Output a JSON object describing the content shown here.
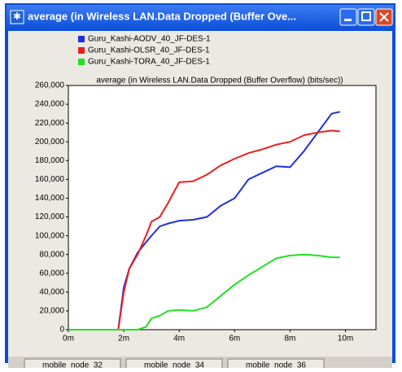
{
  "window_title": "average (in Wireless LAN.Data Dropped (Buffer Ove...",
  "bottom_tabs": [
    "mobile_node_32",
    "mobile_node_34",
    "mobile_node_36"
  ],
  "chart_data": {
    "type": "line",
    "title": "average (in Wireless LAN.Data Dropped (Buffer Overflow) (bits/sec))",
    "x": [
      0,
      1.8,
      2.0,
      2.2,
      2.5,
      2.8,
      3.0,
      3.3,
      3.6,
      4.0,
      4.5,
      5.0,
      5.5,
      6.0,
      6.5,
      7.0,
      7.5,
      8.0,
      8.5,
      9.0,
      9.5,
      9.8
    ],
    "series": [
      {
        "name": "Guru_Kashi-AODV_40_JF-DES-1",
        "color": "#1f2fe0",
        "values": [
          0,
          0,
          45000,
          65000,
          82000,
          93000,
          100000,
          110000,
          113000,
          116000,
          117000,
          120000,
          132000,
          140000,
          160000,
          167000,
          174000,
          173000,
          190000,
          210000,
          230000,
          232000
        ]
      },
      {
        "name": "Guru_Kashi-OLSR_40_JF-DES-1",
        "color": "#ee1c1c",
        "values": [
          0,
          0,
          40000,
          65000,
          80000,
          100000,
          115000,
          120000,
          135000,
          157000,
          158000,
          165000,
          175000,
          182000,
          188000,
          192000,
          197000,
          200000,
          207000,
          210000,
          212000,
          211000
        ]
      },
      {
        "name": "Guru_Kashi-TORA_40_JF-DES-1",
        "color": "#22e022",
        "values": [
          0,
          0,
          0,
          0,
          0,
          3000,
          12000,
          15000,
          20000,
          21000,
          20000,
          24000,
          36000,
          48000,
          58000,
          67000,
          76000,
          79000,
          80000,
          79000,
          77000,
          77000
        ]
      }
    ],
    "xlim": [
      0,
      11.1
    ],
    "xticks": [
      {
        "value": 0,
        "label": "0m"
      },
      {
        "value": 2,
        "label": "2m"
      },
      {
        "value": 4,
        "label": "4m"
      },
      {
        "value": 6,
        "label": "6m"
      },
      {
        "value": 8,
        "label": "8m"
      },
      {
        "value": 10,
        "label": "10m"
      }
    ],
    "ylim": [
      0,
      260000
    ],
    "yticks": [
      {
        "value": 0,
        "label": "0"
      },
      {
        "value": 20000,
        "label": "20,000"
      },
      {
        "value": 40000,
        "label": "40,000"
      },
      {
        "value": 60000,
        "label": "60,000"
      },
      {
        "value": 80000,
        "label": "80,000"
      },
      {
        "value": 100000,
        "label": "100,000"
      },
      {
        "value": 120000,
        "label": "120,000"
      },
      {
        "value": 140000,
        "label": "140,000"
      },
      {
        "value": 160000,
        "label": "160,000"
      },
      {
        "value": 180000,
        "label": "180,000"
      },
      {
        "value": 200000,
        "label": "200,000"
      },
      {
        "value": 220000,
        "label": "220,000"
      },
      {
        "value": 240000,
        "label": "240,000"
      },
      {
        "value": 260000,
        "label": "260,000"
      }
    ],
    "grid": false
  }
}
